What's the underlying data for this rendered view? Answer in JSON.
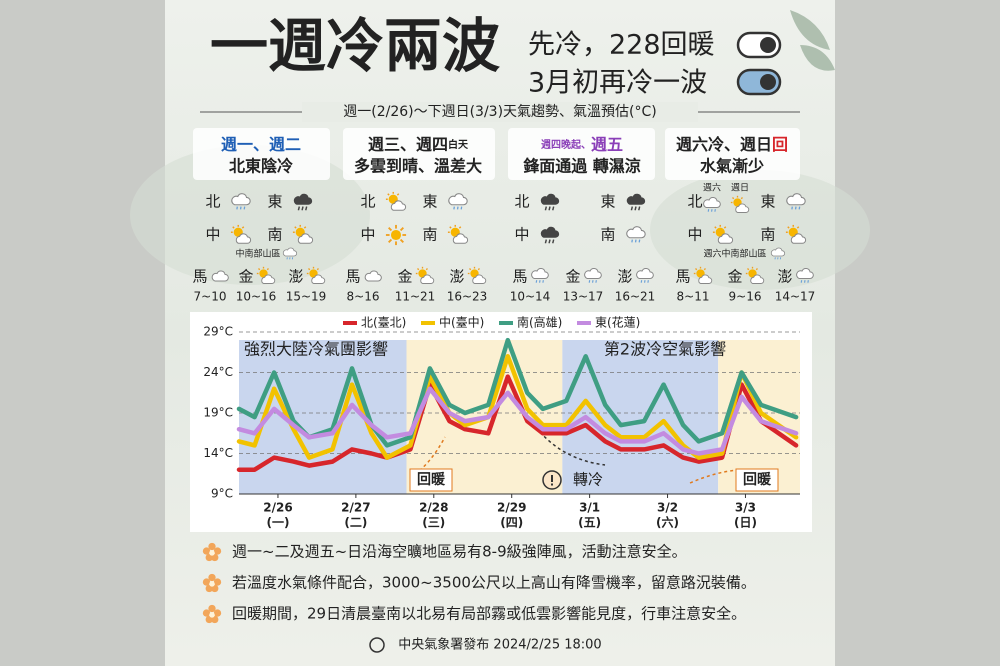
{
  "header": {
    "title": "一週冷兩波",
    "tagline1": "先冷，228回暖",
    "tagline2": "3月初再冷一波",
    "subtitle": "週一(2/26)～下週日(3/3)天氣趨勢、氣溫預估(°C)"
  },
  "columns": [
    {
      "period": [
        "週一、週二"
      ],
      "summary": "北東陰冷",
      "regions": [
        "北",
        "東",
        "中",
        "南"
      ],
      "note": "中南部山區",
      "islands": [
        {
          "name": "馬",
          "range": "7~10"
        },
        {
          "name": "金",
          "range": "10~16"
        },
        {
          "name": "澎",
          "range": "15~19"
        }
      ]
    },
    {
      "period": [
        "週三、週四",
        "白天"
      ],
      "summary": "多雲到晴、溫差大",
      "regions": [
        "北",
        "東",
        "中",
        "南"
      ],
      "islands": [
        {
          "name": "馬",
          "range": "8~16"
        },
        {
          "name": "金",
          "range": "11~21"
        },
        {
          "name": "澎",
          "range": "16~23"
        }
      ]
    },
    {
      "period": [
        "週四晚起、",
        "週五"
      ],
      "summary": "鋒面通過 轉濕涼",
      "regions": [
        "北",
        "東",
        "中",
        "南"
      ],
      "islands": [
        {
          "name": "馬",
          "range": "10~14"
        },
        {
          "name": "金",
          "range": "13~17"
        },
        {
          "name": "澎",
          "range": "16~21"
        }
      ]
    },
    {
      "period": [
        "週六冷、週日",
        "回"
      ],
      "summary": "水氣漸少",
      "regions": [
        "北",
        "東",
        "中",
        "南"
      ],
      "icon_labels": [
        "週六",
        "週日"
      ],
      "note": "週六中南部山區",
      "islands": [
        {
          "name": "馬",
          "range": "8~11"
        },
        {
          "name": "金",
          "range": "9~16"
        },
        {
          "name": "澎",
          "range": "14~17"
        }
      ]
    }
  ],
  "chart_data": {
    "type": "line",
    "x": [
      0,
      0.2,
      0.45,
      0.7,
      0.9,
      1.2,
      1.45,
      1.7,
      1.9,
      2.2,
      2.45,
      2.7,
      2.9,
      3.2,
      3.45,
      3.7,
      3.9,
      4.2,
      4.45,
      4.7,
      4.9,
      5.2,
      5.45,
      5.7,
      5.9,
      6.2,
      6.45,
      6.7,
      7.15
    ],
    "series": [
      {
        "name": "北(臺北)",
        "color": "#d7262b",
        "values": [
          12,
          12,
          13.5,
          13,
          12.5,
          13,
          14.5,
          14,
          13.5,
          14.5,
          22.5,
          18,
          17,
          16.5,
          23.5,
          18,
          16.5,
          16.5,
          17.5,
          15.5,
          14.5,
          14.5,
          15,
          13.5,
          13,
          13.5,
          22.5,
          18,
          15
        ]
      },
      {
        "name": "中(臺中)",
        "color": "#f2c200",
        "values": [
          15.5,
          15,
          22,
          17,
          13.5,
          14.5,
          22.5,
          16.5,
          13.5,
          15,
          23.5,
          19,
          17.5,
          18.5,
          26,
          19.5,
          17.5,
          17.5,
          20.5,
          17.5,
          16,
          16,
          18,
          15,
          13.5,
          14,
          24,
          19,
          16
        ]
      },
      {
        "name": "南(高雄)",
        "color": "#3f9e83",
        "values": [
          19.5,
          18.5,
          24,
          18,
          16,
          17,
          24.5,
          17.5,
          15,
          16,
          24.5,
          20,
          19,
          20,
          28,
          21.5,
          19.5,
          20.5,
          26,
          20,
          17.5,
          18,
          22.5,
          17.5,
          15.5,
          16.5,
          24,
          20,
          18.5
        ]
      },
      {
        "name": "東(花蓮)",
        "color": "#c38be0",
        "values": [
          17,
          16.5,
          19.5,
          17.5,
          16,
          16.5,
          20,
          17.5,
          16,
          16.5,
          22,
          19,
          18,
          18.5,
          21.5,
          18.5,
          17,
          17,
          18.5,
          16.5,
          15.5,
          15.5,
          16.5,
          14.5,
          14,
          14.5,
          21,
          18,
          16.5
        ]
      }
    ],
    "xlim": [
      0,
      7.2
    ],
    "xticks": [
      {
        "value": 0.5,
        "label": "2/26"
      },
      {
        "value": 1.5,
        "label": "2/27"
      },
      {
        "value": 2.5,
        "label": "2/28"
      },
      {
        "value": 3.5,
        "label": "2/29"
      },
      {
        "value": 4.5,
        "label": "3/1"
      },
      {
        "value": 5.5,
        "label": "3/2"
      },
      {
        "value": 6.5,
        "label": "3/3"
      }
    ],
    "weekdays": [
      "(一)",
      "(二)",
      "(三)",
      "(四)",
      "(五)",
      "(六)",
      "(日)"
    ],
    "ylim": [
      9,
      29
    ],
    "yticks": [
      {
        "value": 9,
        "label": "9°C"
      },
      {
        "value": 14,
        "label": "14°C"
      },
      {
        "value": 19,
        "label": "19°C"
      },
      {
        "value": 24,
        "label": "24°C"
      },
      {
        "value": 29,
        "label": "29°C"
      }
    ],
    "grid": true,
    "legend": "top",
    "annotations": [
      "強烈大陸冷氣團影響",
      "第2波冷空氣影響",
      "回暖",
      "轉冷",
      "回暖"
    ]
  },
  "notes": [
    "週一~二及週五~日沿海空曠地區易有8-9級強陣風，活動注意安全。",
    "若溫度水氣條件配合，3000~3500公尺以上高山有降雪機率，留意路況裝備。",
    "回暖期間，29日清晨臺南以北易有局部霧或低雲影響能見度，行車注意安全。"
  ],
  "footer": "中央氣象署發布 2024/2/25 18:00"
}
